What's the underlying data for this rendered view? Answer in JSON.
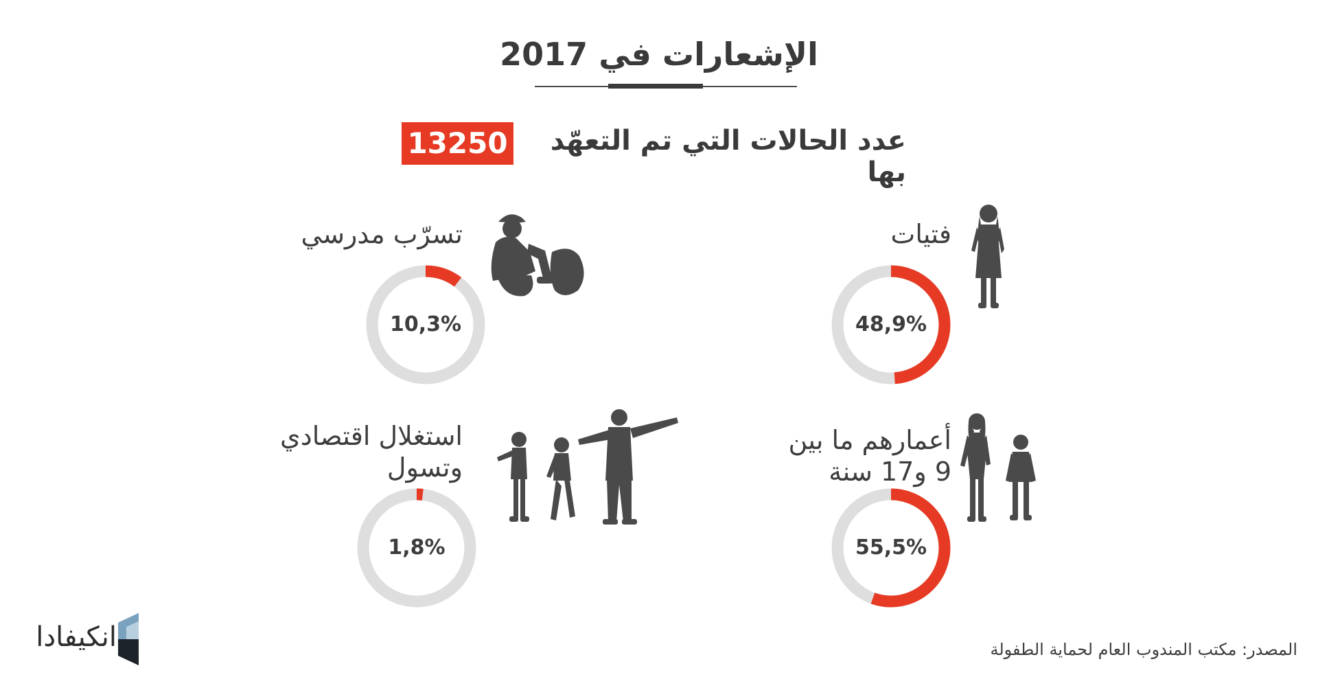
{
  "title": "الإشعارات في 2017",
  "headline": {
    "label": "عدد الحالات التي تم التعهّد بها",
    "total": "13250"
  },
  "colors": {
    "accent": "#e63a24",
    "track": "#dedede",
    "text": "#3d3d3d",
    "silhouette": "#4a4a4a"
  },
  "chart_data": {
    "type": "pie",
    "title": "الإشعارات في 2017",
    "total_cases": 13250,
    "categories": [
      "فتيات",
      "تسرّب مدرسي",
      "أعمارهم ما بين 9 و17 سنة",
      "استغلال اقتصادي وتسول"
    ],
    "values": [
      48.9,
      10.3,
      55.5,
      1.8
    ],
    "value_labels": [
      "48,9%",
      "10,3%",
      "55,5%",
      "1,8%"
    ],
    "unit": "%"
  },
  "stats": [
    {
      "label_lines": [
        "فتيات"
      ],
      "value_label": "48,9%",
      "value": 48.9,
      "icon": "girl-silhouette-icon"
    },
    {
      "label_lines": [
        "تسرّب مدرسي"
      ],
      "value_label": "10,3%",
      "value": 10.3,
      "icon": "sitting-child-silhouette-icon"
    },
    {
      "label_lines": [
        "أعمارهم ما بين",
        "9 و17 سنة"
      ],
      "value_label": "55,5%",
      "value": 55.5,
      "icon": "two-children-silhouette-icon"
    },
    {
      "label_lines": [
        "استغلال اقتصادي",
        "وتسول"
      ],
      "value_label": "1,8%",
      "value": 1.8,
      "icon": "man-pointing-children-silhouette-icon"
    }
  ],
  "source": "المصدر: مكتب المندوب العام لحماية الطفولة",
  "brand": {
    "name": "انكيفادا",
    "icon": "inkyfada-logo-icon"
  }
}
